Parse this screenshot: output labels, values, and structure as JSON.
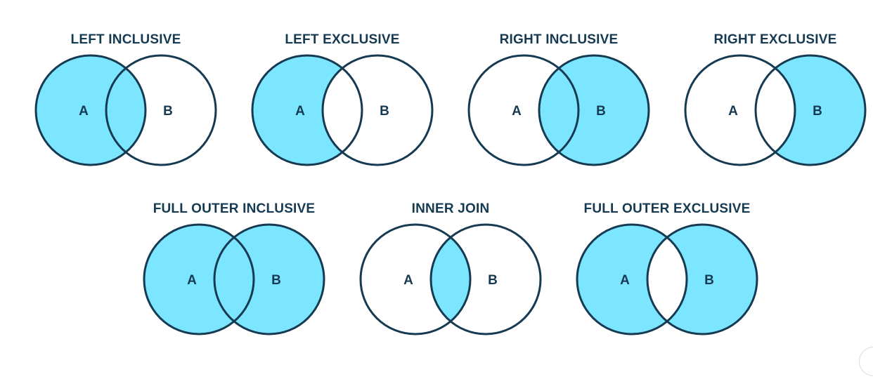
{
  "colors": {
    "fill": "#7ce5ff",
    "stroke": "#163a52",
    "background": "#ffffff"
  },
  "diagrams": [
    {
      "title": "LEFT INCLUSIVE",
      "label_a": "A",
      "label_b": "B",
      "fill_left": true,
      "fill_overlap": true,
      "fill_right": false
    },
    {
      "title": "LEFT EXCLUSIVE",
      "label_a": "A",
      "label_b": "B",
      "fill_left": true,
      "fill_overlap": false,
      "fill_right": false
    },
    {
      "title": "RIGHT INCLUSIVE",
      "label_a": "A",
      "label_b": "B",
      "fill_left": false,
      "fill_overlap": true,
      "fill_right": true
    },
    {
      "title": "RIGHT EXCLUSIVE",
      "label_a": "A",
      "label_b": "B",
      "fill_left": false,
      "fill_overlap": false,
      "fill_right": true
    },
    {
      "title": "FULL OUTER INCLUSIVE",
      "label_a": "A",
      "label_b": "B",
      "fill_left": true,
      "fill_overlap": true,
      "fill_right": true
    },
    {
      "title": "INNER JOIN",
      "label_a": "A",
      "label_b": "B",
      "fill_left": false,
      "fill_overlap": true,
      "fill_right": false
    },
    {
      "title": "FULL OUTER EXCLUSIVE",
      "label_a": "A",
      "label_b": "B",
      "fill_left": true,
      "fill_overlap": false,
      "fill_right": true
    }
  ]
}
